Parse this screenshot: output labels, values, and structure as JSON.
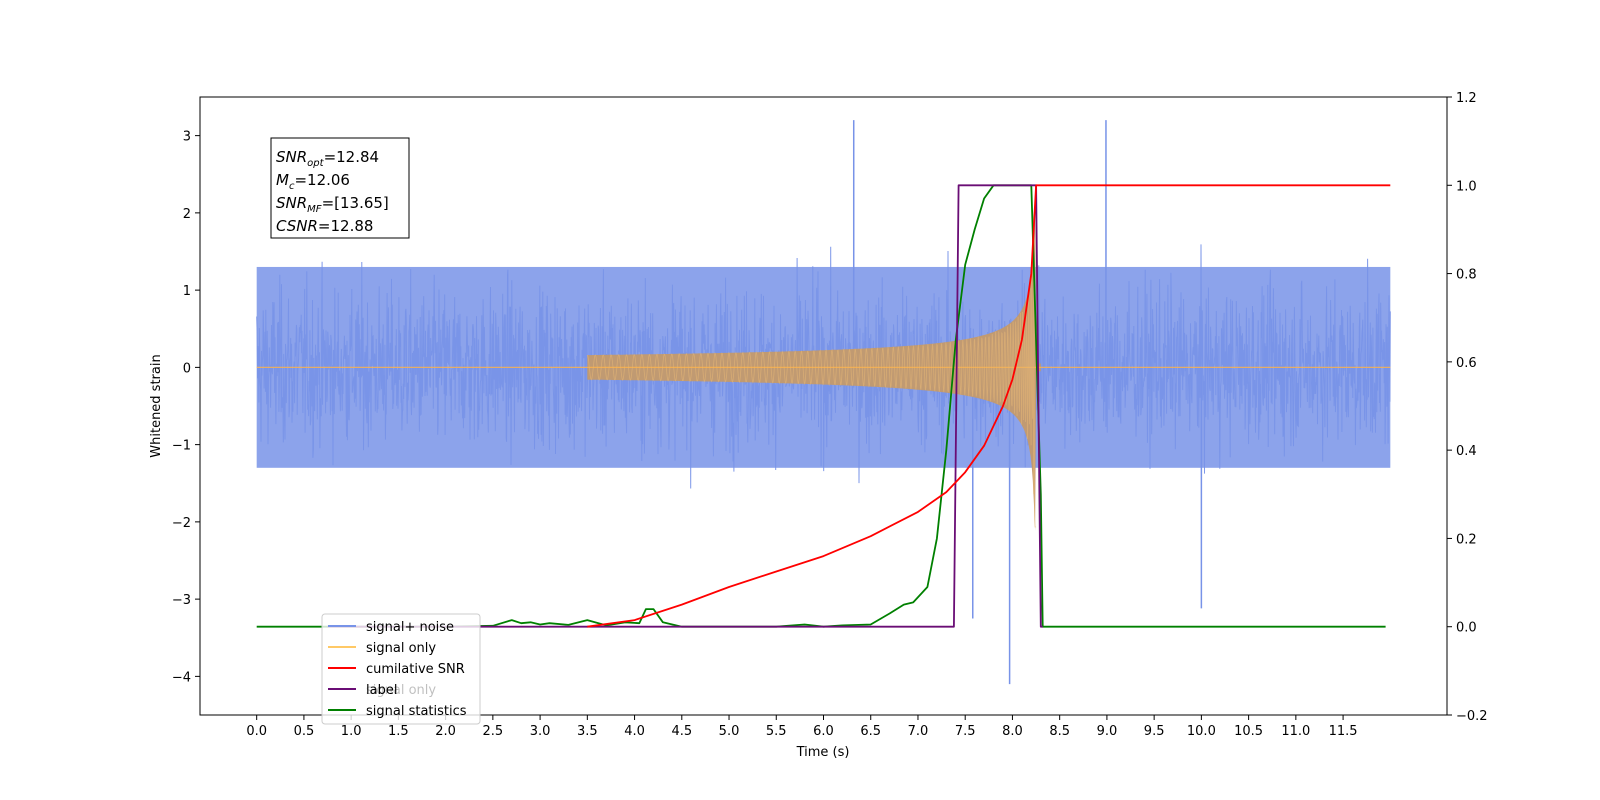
{
  "chart_data": {
    "type": "line",
    "xlabel": "Time (s)",
    "ylabel": "Whitened strain",
    "xlim": [
      -0.6,
      12.6
    ],
    "ylim": [
      -4.5,
      3.5
    ],
    "y2lim": [
      -0.2,
      1.2
    ],
    "xticks": [
      "0.0",
      "0.5",
      "1.0",
      "1.5",
      "2.0",
      "2.5",
      "3.0",
      "3.5",
      "4.0",
      "4.5",
      "5.0",
      "5.5",
      "6.0",
      "6.5",
      "7.0",
      "7.5",
      "8.0",
      "8.5",
      "9.0",
      "9.5",
      "10.0",
      "10.5",
      "11.0",
      "11.5"
    ],
    "yticks": [
      "3",
      "2",
      "1",
      "0",
      "−1",
      "−2",
      "−3",
      "−4"
    ],
    "y2ticks": [
      "1.2",
      "1.0",
      "0.8",
      "0.6",
      "0.4",
      "0.2",
      "0.0",
      "−0.2"
    ],
    "annotation": [
      {
        "sym": "SNR",
        "sub": "opt",
        "rest": "=12.84"
      },
      {
        "sym": "M",
        "sub": "c",
        "rest": "=12.06"
      },
      {
        "sym": "SNR",
        "sub": "MF",
        "rest": "=[13.65]"
      },
      {
        "sym": "CSNR",
        "sub": "",
        "rest": "=12.88"
      }
    ],
    "legend": {
      "placement": "lower-left",
      "entries": [
        {
          "label": "signal+ noise",
          "color": "#7893e8"
        },
        {
          "label": "signal only",
          "color": "#ffc966"
        },
        {
          "label": "cumilative SNR",
          "color": "#ff0000"
        },
        {
          "label": "label",
          "color": "#6a0d75"
        },
        {
          "label": "signal statistics",
          "color": "#008000"
        }
      ],
      "hidden_text": "signal only"
    },
    "series": [
      {
        "name": "signal+ noise",
        "axis": "left",
        "color": "#7893e8",
        "style": "noise",
        "x_range": [
          0.0,
          12.0
        ],
        "typical_amplitude": [
          -1.3,
          1.3
        ],
        "extremes": [
          {
            "x": 6.32,
            "y": 3.2
          },
          {
            "x": 8.99,
            "y": 3.2
          },
          {
            "x": 7.97,
            "y": -4.1
          },
          {
            "x": 7.58,
            "y": -3.25
          },
          {
            "x": 10.0,
            "y": -3.12
          }
        ]
      },
      {
        "name": "signal only",
        "axis": "left",
        "color": "#ffb347",
        "style": "chirp",
        "x_range": [
          0.0,
          12.0
        ],
        "merger_time": 8.25,
        "peak_amplitude": 2.3
      },
      {
        "name": "cumilative SNR",
        "axis": "right",
        "color": "#ff0000",
        "x": [
          3.5,
          4.0,
          4.5,
          5.0,
          5.5,
          6.0,
          6.5,
          7.0,
          7.3,
          7.5,
          7.7,
          7.9,
          8.0,
          8.1,
          8.2,
          8.25,
          8.3,
          12.0
        ],
        "y": [
          0.0,
          0.015,
          0.05,
          0.09,
          0.125,
          0.16,
          0.205,
          0.26,
          0.305,
          0.35,
          0.41,
          0.5,
          0.56,
          0.65,
          0.8,
          1.0,
          1.0,
          1.0
        ]
      },
      {
        "name": "label",
        "axis": "right",
        "color": "#6a0d75",
        "x": [
          0.75,
          7.38,
          7.43,
          8.25,
          8.3,
          8.32
        ],
        "y": [
          0.0,
          0.0,
          1.0,
          1.0,
          0.0,
          0.0
        ]
      },
      {
        "name": "signal statistics",
        "axis": "right",
        "color": "#008000",
        "x": [
          0.0,
          2.0,
          2.5,
          2.7,
          2.8,
          2.9,
          3.0,
          3.1,
          3.3,
          3.5,
          3.7,
          3.9,
          4.05,
          4.12,
          4.2,
          4.3,
          4.5,
          5.0,
          5.5,
          5.8,
          6.0,
          6.2,
          6.5,
          6.7,
          6.85,
          6.95,
          7.1,
          7.2,
          7.3,
          7.4,
          7.5,
          7.6,
          7.7,
          7.8,
          8.2,
          8.3,
          8.32,
          11.95
        ],
        "y": [
          0.0,
          0.0,
          0.002,
          0.015,
          0.008,
          0.01,
          0.005,
          0.008,
          0.004,
          0.015,
          0.003,
          0.01,
          0.008,
          0.04,
          0.04,
          0.01,
          0.0,
          0.0,
          0.0,
          0.005,
          0.0,
          0.003,
          0.005,
          0.03,
          0.05,
          0.055,
          0.09,
          0.2,
          0.4,
          0.65,
          0.82,
          0.9,
          0.97,
          1.0,
          1.0,
          0.3,
          0.0,
          0.0
        ]
      }
    ]
  }
}
